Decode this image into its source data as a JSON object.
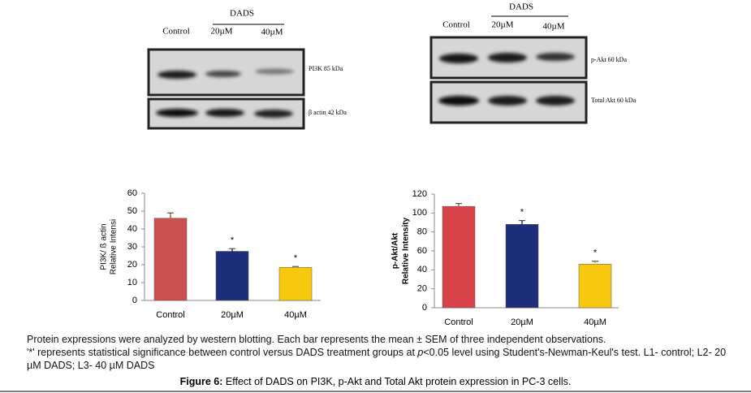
{
  "blots": [
    {
      "header": "DADS",
      "lanes": [
        "Control",
        "20µM",
        "40µM"
      ],
      "bands": [
        "PI3K  85 kDa",
        "β actin 42 kDa"
      ]
    },
    {
      "header": "DADS",
      "lanes": [
        "Control",
        "20µM",
        "40µM"
      ],
      "bands": [
        "p-Akt  60 kDa",
        "Total Akt 60 kDa"
      ]
    }
  ],
  "chart_data": [
    {
      "type": "bar",
      "ylabel": [
        "PI3K/ ß actin",
        "Relative Intensi"
      ],
      "categories": [
        "Control",
        "20µM",
        "40µM"
      ],
      "values": [
        46,
        27.5,
        18.5
      ],
      "errors": [
        3,
        1.5,
        0.5
      ],
      "markers": [
        null,
        "*",
        "*"
      ],
      "colors": [
        "#c9504f",
        "#1d2f7c",
        "#f7c80e"
      ],
      "ylim": [
        0,
        60
      ],
      "yticks": [
        0,
        10,
        20,
        30,
        40,
        50,
        60
      ]
    },
    {
      "type": "bar",
      "ylabel": [
        "p-Akt/Akt",
        "Relative Intensity"
      ],
      "categories": [
        "Control",
        "20µM",
        "40µM"
      ],
      "values": [
        107,
        88,
        46
      ],
      "errors": [
        3,
        4,
        3
      ],
      "markers": [
        null,
        "*",
        "*"
      ],
      "colors": [
        "#d8434a",
        "#1d2f7c",
        "#f7c80e"
      ],
      "ylim": [
        0,
        120
      ],
      "yticks": [
        0,
        20,
        40,
        60,
        80,
        100,
        120
      ]
    }
  ],
  "caption": {
    "line1": "Protein expressions were analyzed by western blotting. Each bar represents the mean ± SEM of three independent observations.",
    "line2_a": "'*' represents statistical significance between control versus DADS treatment groups at ",
    "line2_p": "p",
    "line2_b": "<0.05 level using Student's-Newman-Keul's test. L1- control; L2- 20 µM DADS; L3- 40 µM DADS",
    "figure_label": "Figure 6:",
    "figure_title": " Effect of DADS on PI3K, p-Akt and Total Akt protein expression in PC-3 cells."
  }
}
